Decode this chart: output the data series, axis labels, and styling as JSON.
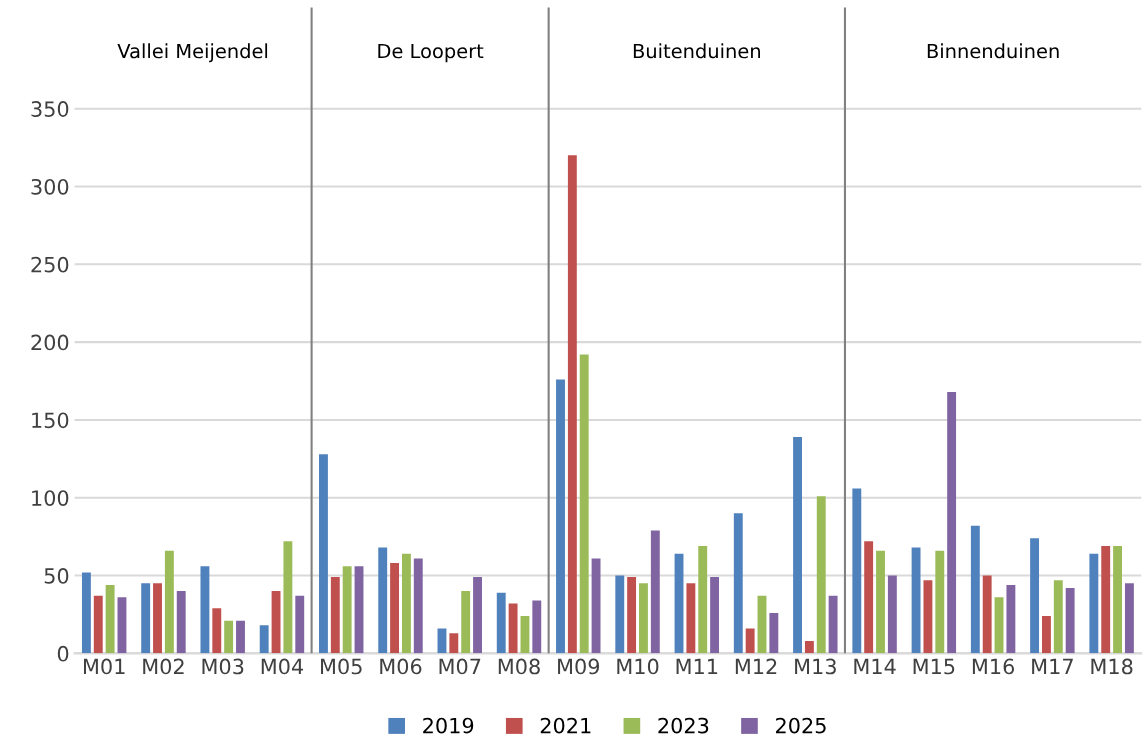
{
  "chart_data": {
    "type": "bar",
    "categories": [
      "M01",
      "M02",
      "M03",
      "M04",
      "M05",
      "M06",
      "M07",
      "M08",
      "M09",
      "M10",
      "M11",
      "M12",
      "M13",
      "M14",
      "M15",
      "M16",
      "M17",
      "M18"
    ],
    "series": [
      {
        "name": "2019",
        "color": "#4f81bd",
        "values": [
          52,
          45,
          56,
          18,
          128,
          68,
          16,
          39,
          176,
          50,
          64,
          90,
          139,
          106,
          68,
          82,
          74,
          64
        ]
      },
      {
        "name": "2021",
        "color": "#c0504d",
        "values": [
          37,
          45,
          29,
          40,
          49,
          58,
          13,
          32,
          320,
          49,
          45,
          16,
          8,
          72,
          47,
          50,
          24,
          69
        ]
      },
      {
        "name": "2023",
        "color": "#9bbb59",
        "values": [
          44,
          66,
          21,
          72,
          56,
          64,
          40,
          24,
          192,
          45,
          69,
          37,
          101,
          66,
          66,
          36,
          47,
          69
        ]
      },
      {
        "name": "2025",
        "color": "#8064a2",
        "values": [
          36,
          40,
          21,
          37,
          56,
          61,
          49,
          34,
          61,
          79,
          49,
          26,
          37,
          50,
          168,
          44,
          42,
          45
        ]
      }
    ],
    "ylim": [
      0,
      415
    ],
    "yticks": [
      0,
      50,
      100,
      150,
      200,
      250,
      300,
      350
    ],
    "grid": "y",
    "legend": "bottom",
    "annotations": [
      "Vallei Meijendel",
      "De Loopert",
      "Buitenduinen",
      "Binnenduinen"
    ]
  }
}
